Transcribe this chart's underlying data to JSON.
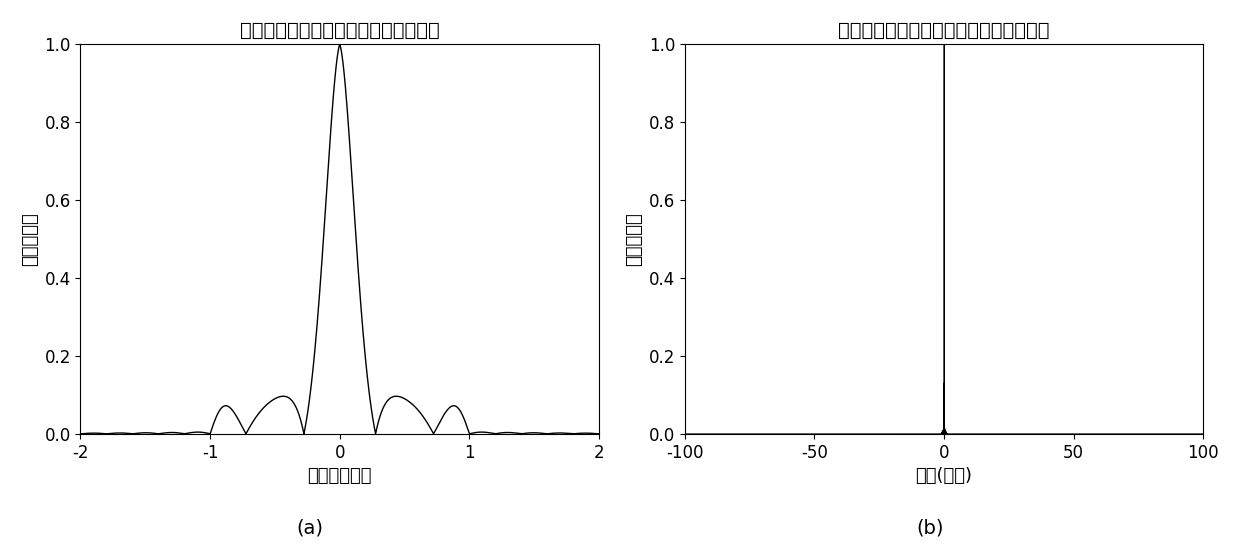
{
  "title_left": "现有技术获得的信号的距离模糊函数图",
  "title_right": "本发明方法获得的信号的距离模糊函数图",
  "xlabel_left": "延迟（微秒）",
  "xlabel_right": "延时(微秒)",
  "ylabel": "归一化幅度",
  "label_a": "(a)",
  "label_b": "(b)",
  "xlim_left": [
    -2,
    2
  ],
  "xlim_right": [
    -100,
    100
  ],
  "ylim": [
    0,
    1
  ],
  "yticks": [
    0,
    0.2,
    0.4,
    0.6,
    0.8,
    1
  ],
  "xticks_left": [
    -2,
    -1,
    0,
    1,
    2
  ],
  "xticks_right": [
    -100,
    -50,
    0,
    50,
    100
  ],
  "line_color": "#000000",
  "bg_color": "#ffffff",
  "title_fontsize": 14,
  "label_fontsize": 13,
  "tick_fontsize": 12,
  "caption_fontsize": 14
}
